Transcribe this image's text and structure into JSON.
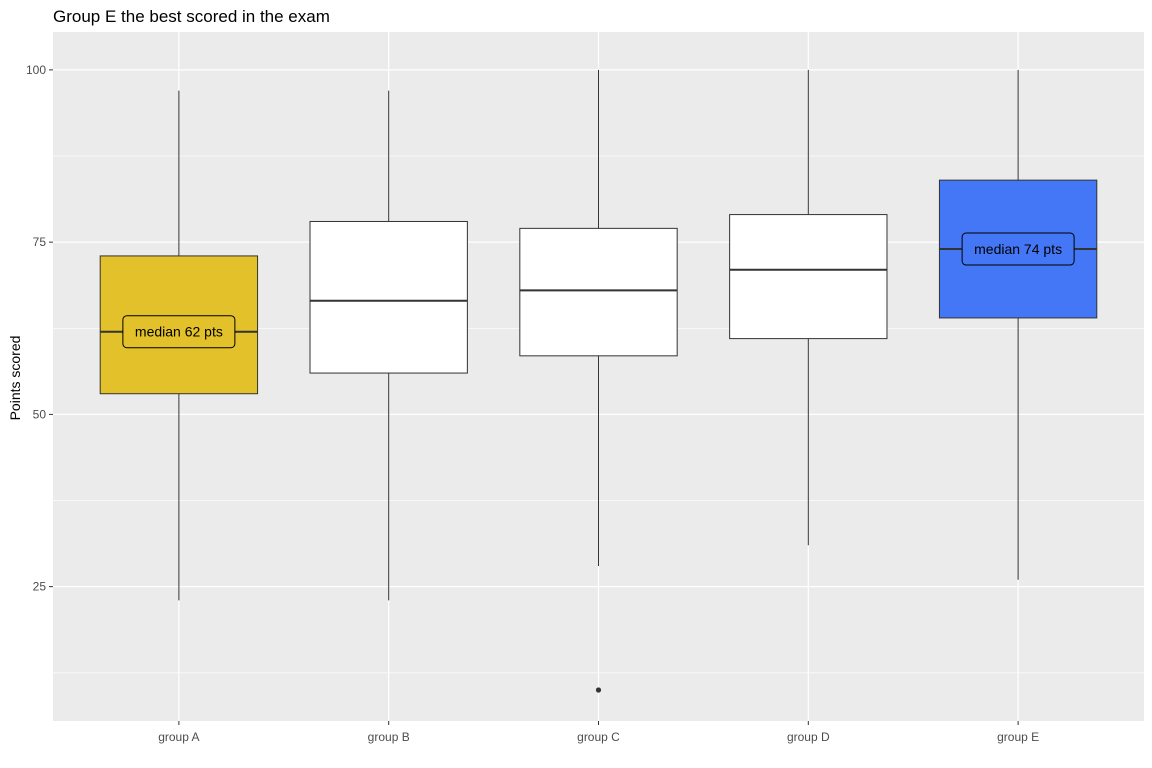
{
  "chart_data": {
    "type": "box",
    "title": "Group E the best scored in the exam",
    "xlabel": "",
    "ylabel": "Points scored",
    "ylim": [
      5.5,
      105.5
    ],
    "yticks": [
      25,
      50,
      75,
      100
    ],
    "grid": true,
    "legend": "none",
    "panel_color": "#ebebeb",
    "grid_color": "#ffffff",
    "categories": [
      "group A",
      "group B",
      "group C",
      "group D",
      "group E"
    ],
    "boxes": [
      {
        "category": "group A",
        "min": 23,
        "q1": 53,
        "median": 62,
        "q3": 73,
        "max": 97,
        "outliers": [],
        "fill": "#e3c12b",
        "label": "median 62 pts"
      },
      {
        "category": "group B",
        "min": 23,
        "q1": 56,
        "median": 66.5,
        "q3": 78,
        "max": 97,
        "outliers": [],
        "fill": "#ffffff",
        "label": ""
      },
      {
        "category": "group C",
        "min": 28,
        "q1": 58.5,
        "median": 68,
        "q3": 77,
        "max": 100,
        "outliers": [
          10
        ],
        "fill": "#ffffff",
        "label": ""
      },
      {
        "category": "group D",
        "min": 31,
        "q1": 61,
        "median": 71,
        "q3": 79,
        "max": 100,
        "outliers": [],
        "fill": "#ffffff",
        "label": ""
      },
      {
        "category": "group E",
        "min": 26,
        "q1": 64,
        "median": 74,
        "q3": 84,
        "max": 100,
        "outliers": [],
        "fill": "#4477f5",
        "label": "median 74 pts"
      }
    ]
  }
}
